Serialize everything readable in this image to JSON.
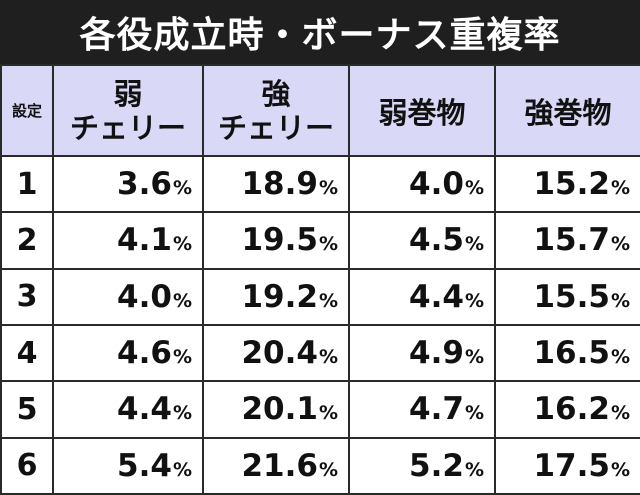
{
  "title": "各役成立時・ボーナス重複率",
  "header": {
    "setting": "設定",
    "columns": [
      {
        "line1": "弱",
        "line2": "チェリー"
      },
      {
        "line1": "強",
        "line2": "チェリー"
      },
      {
        "line1": "弱巻物",
        "line2": ""
      },
      {
        "line1": "強巻物",
        "line2": ""
      }
    ]
  },
  "unit": "%",
  "rows": [
    {
      "setting": "1",
      "values": [
        "3.6",
        "18.9",
        "4.0",
        "15.2"
      ]
    },
    {
      "setting": "2",
      "values": [
        "4.1",
        "19.5",
        "4.5",
        "15.7"
      ]
    },
    {
      "setting": "3",
      "values": [
        "4.0",
        "19.2",
        "4.4",
        "15.5"
      ]
    },
    {
      "setting": "4",
      "values": [
        "4.6",
        "20.4",
        "4.9",
        "16.5"
      ]
    },
    {
      "setting": "5",
      "values": [
        "4.4",
        "20.1",
        "4.7",
        "16.2"
      ]
    },
    {
      "setting": "6",
      "values": [
        "5.4",
        "21.6",
        "5.2",
        "17.5"
      ]
    }
  ],
  "colors": {
    "title_bg": "#1f1f1f",
    "header_bg": "#d9d9f7",
    "border": "#2a2a2a"
  }
}
